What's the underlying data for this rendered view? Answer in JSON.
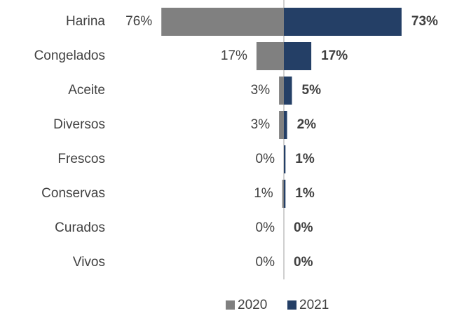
{
  "chart_data": {
    "type": "diverging-bar",
    "categories": [
      "Harina",
      "Congelados",
      "Aceite",
      "Diversos",
      "Frescos",
      "Conservas",
      "Curados",
      "Vivos"
    ],
    "series": [
      {
        "name": "2020",
        "color": "#808080",
        "values": [
          76,
          17,
          3,
          3,
          0,
          1,
          0,
          0
        ],
        "value_labels": [
          "76%",
          "17%",
          "3%",
          "3%",
          "0%",
          "1%",
          "0%",
          "0%"
        ]
      },
      {
        "name": "2021",
        "color": "#243f66",
        "values": [
          73,
          17,
          5,
          2,
          1,
          1,
          0,
          0
        ],
        "value_labels": [
          "73%",
          "17%",
          "5%",
          "2%",
          "1%",
          "1%",
          "0%",
          "0%"
        ]
      }
    ],
    "legend": "bottom"
  }
}
